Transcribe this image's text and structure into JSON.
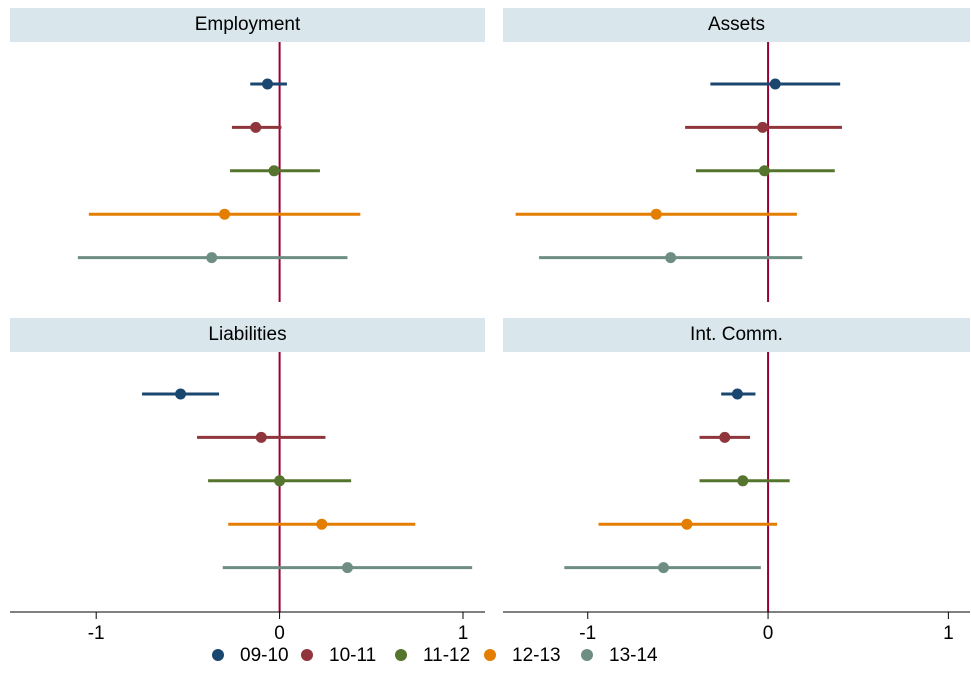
{
  "chart_data": {
    "type": "coefplot",
    "series": [
      {
        "name": "09-10",
        "color": "#1a476f"
      },
      {
        "name": "10-11",
        "color": "#90353b"
      },
      {
        "name": "11-12",
        "color": "#55752f"
      },
      {
        "name": "12-13",
        "color": "#e37e00"
      },
      {
        "name": "13-14",
        "color": "#6e8e84"
      }
    ],
    "xlim": [
      -1.47,
      1.12
    ],
    "xticks": [
      -1,
      0,
      1
    ],
    "xline": 0,
    "xline_color": "#990033",
    "strip_color": "#d9e6eb",
    "panels": [
      {
        "title": "Employment",
        "values": [
          -0.066,
          -0.13,
          -0.03,
          -0.3,
          -0.37
        ],
        "lower": [
          -0.16,
          -0.26,
          -0.27,
          -1.04,
          -1.1
        ],
        "upper": [
          0.04,
          0.01,
          0.22,
          0.44,
          0.37
        ]
      },
      {
        "title": "Assets",
        "values": [
          0.04,
          -0.03,
          -0.02,
          -0.62,
          -0.54
        ],
        "lower": [
          -0.32,
          -0.46,
          -0.4,
          -1.4,
          -1.27
        ],
        "upper": [
          0.4,
          0.41,
          0.37,
          0.16,
          0.19
        ]
      },
      {
        "title": "Liabilities",
        "values": [
          -0.54,
          -0.1,
          0.0,
          0.23,
          0.37
        ],
        "lower": [
          -0.75,
          -0.45,
          -0.39,
          -0.28,
          -0.31
        ],
        "upper": [
          -0.33,
          0.25,
          0.39,
          0.74,
          1.05
        ]
      },
      {
        "title": "Int. Comm.",
        "values": [
          -0.17,
          -0.24,
          -0.14,
          -0.45,
          -0.58
        ],
        "lower": [
          -0.26,
          -0.38,
          -0.38,
          -0.94,
          -1.13
        ],
        "upper": [
          -0.07,
          -0.1,
          0.12,
          0.05,
          -0.04
        ]
      }
    ]
  }
}
